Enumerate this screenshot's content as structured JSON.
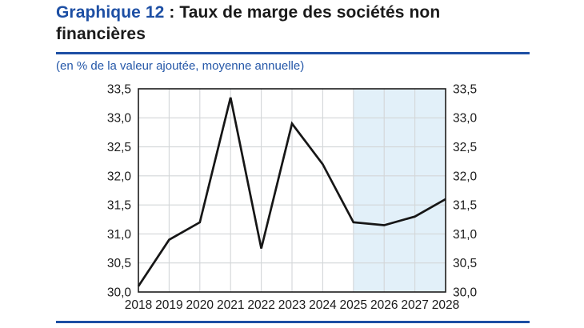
{
  "header": {
    "title_highlight": "Graphique 12",
    "title_separator": " : ",
    "title_main": "Taux de marge des sociétés non financières",
    "subtitle": "(en % de la valeur ajoutée, moyenne annuelle)"
  },
  "colors": {
    "accent_blue": "#1d4fa4",
    "subtitle_blue": "#2457a8",
    "line_black": "#161616",
    "frame_black": "#1c1c1c",
    "grid_gray": "#d3d6d8",
    "forecast_shade": "#e2f0f9"
  },
  "chart_data": {
    "type": "line",
    "title": "Taux de marge des sociétés non financières",
    "unit_note": "(en % de la valeur ajoutée, moyenne annuelle)",
    "x": [
      2018,
      2019,
      2020,
      2021,
      2022,
      2023,
      2024,
      2025,
      2026,
      2027,
      2028
    ],
    "values": [
      30.1,
      30.9,
      31.2,
      33.35,
      30.75,
      32.9,
      32.2,
      31.2,
      31.15,
      31.3,
      31.6
    ],
    "ylim": [
      30.0,
      33.5
    ],
    "ytick_step": 0.5,
    "ytick_labels": [
      "30,0",
      "30,5",
      "31,0",
      "31,5",
      "32,0",
      "32,5",
      "33,0",
      "33,5"
    ],
    "y_axis_sides": [
      "left",
      "right"
    ],
    "grid": true,
    "legend": "none",
    "shaded_region": {
      "start": 2025,
      "end": 2028
    }
  }
}
